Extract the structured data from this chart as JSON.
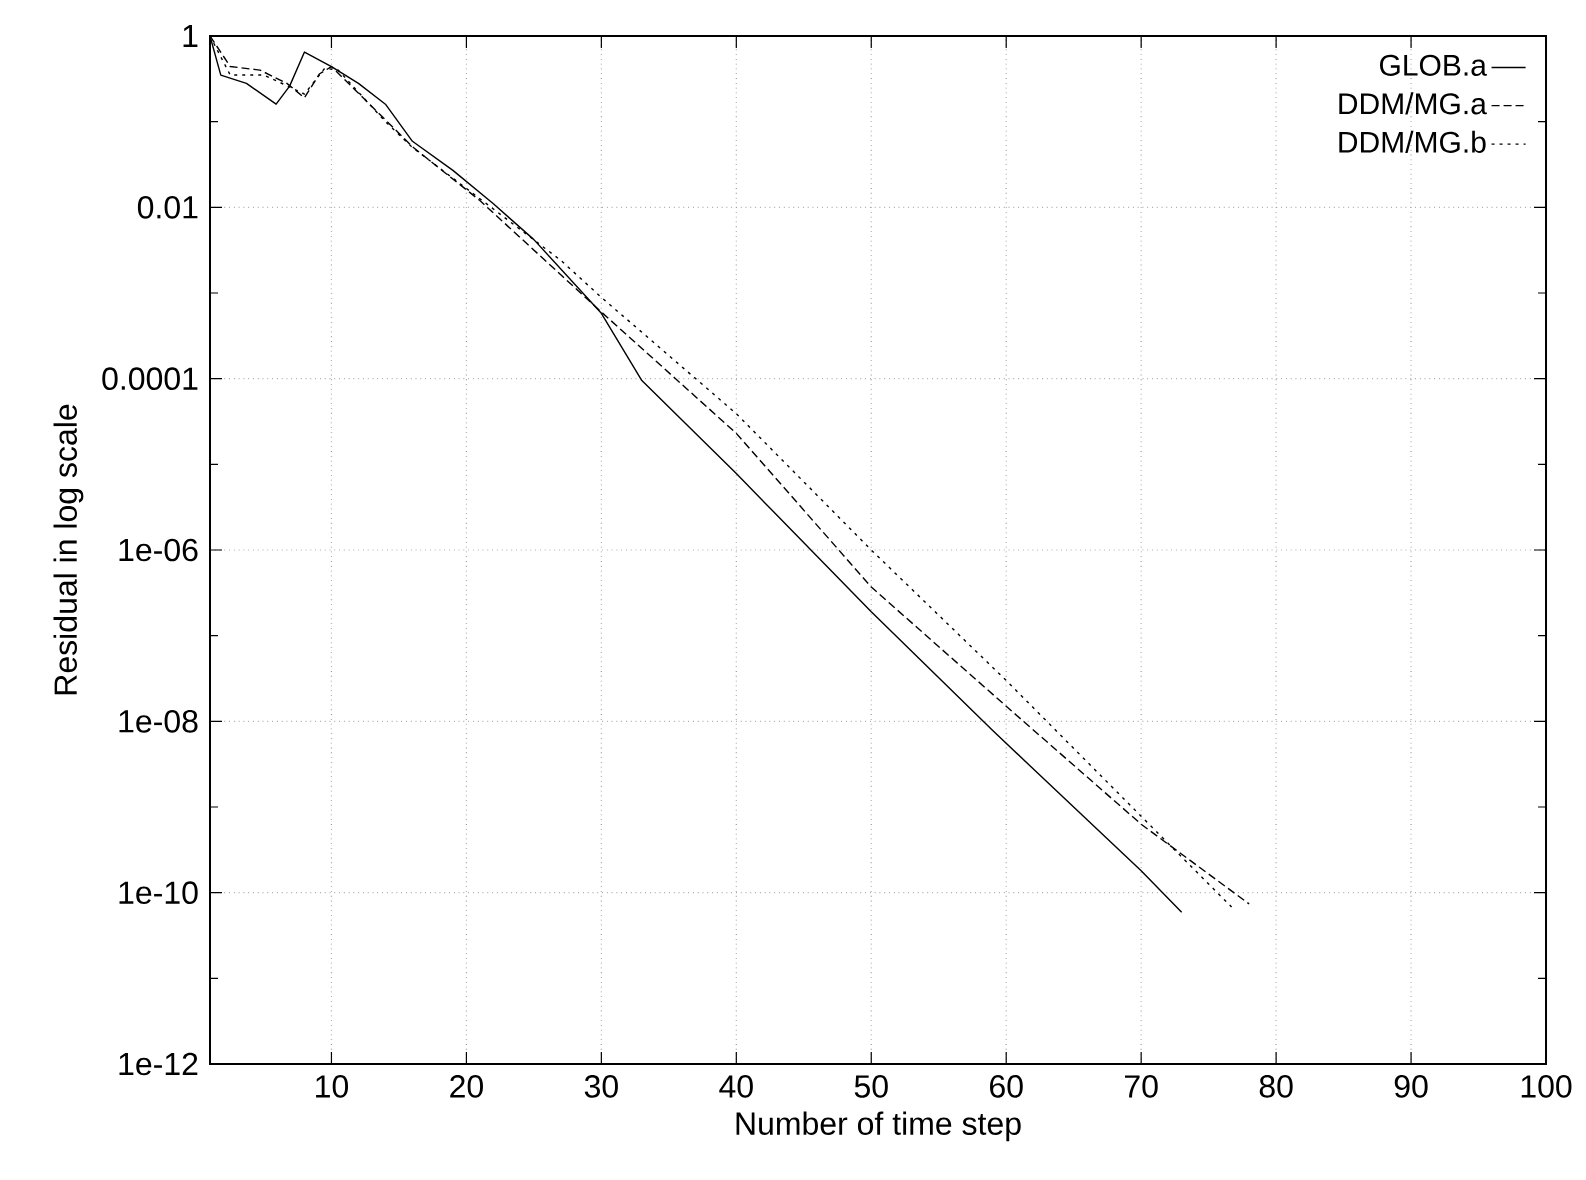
{
  "chart_data": {
    "type": "line",
    "xlabel": "Number of time step",
    "ylabel": "Residual in log scale",
    "xlim": [
      1,
      100
    ],
    "xticks": [
      10,
      20,
      30,
      40,
      50,
      60,
      70,
      80,
      90,
      100
    ],
    "ylim": [
      1e-12,
      1
    ],
    "yticks": [
      {
        "value": 1e-12,
        "label": "1e-12"
      },
      {
        "value": 1e-11,
        "label": null
      },
      {
        "value": 1e-10,
        "label": "1e-10"
      },
      {
        "value": 1e-09,
        "label": null
      },
      {
        "value": 1e-08,
        "label": "1e-08"
      },
      {
        "value": 1e-07,
        "label": null
      },
      {
        "value": 1e-06,
        "label": "1e-06"
      },
      {
        "value": 1e-05,
        "label": null
      },
      0.0001,
      {
        "value": 0.001,
        "label": null
      },
      0.01,
      {
        "value": 0.1,
        "label": null
      },
      1
    ],
    "log": "y",
    "grid": true,
    "legend": "top right",
    "marker": "none",
    "series": [
      {
        "name": "GLOB.a",
        "color": "#000000",
        "line_style": "solid",
        "x": [
          1,
          1.8,
          3.7,
          5.9,
          6.9,
          8,
          10,
          12,
          14,
          16,
          19,
          22,
          25,
          30,
          33,
          40,
          50,
          59,
          70,
          73
        ],
        "values": [
          1,
          0.35,
          0.28,
          0.16,
          0.26,
          0.65,
          0.44,
          0.28,
          0.16,
          0.059,
          0.027,
          0.011,
          0.0042,
          0.00058,
          9.5e-05,
          7.8e-06,
          1.9e-07,
          7.8e-09,
          1.8e-10,
          5.9e-11
        ]
      },
      {
        "name": "DDM/MG.a",
        "color": "#000000",
        "line_style": "dashed",
        "x": [
          1,
          2.5,
          4.7,
          6.7,
          8,
          9.1,
          10,
          14,
          16,
          21,
          30,
          40,
          50,
          60,
          70,
          78
        ],
        "values": [
          1,
          0.44,
          0.4,
          0.28,
          0.19,
          0.36,
          0.44,
          0.105,
          0.051,
          0.012,
          0.0006,
          2.3e-05,
          3.7e-07,
          1.5e-08,
          6.3e-10,
          7.4e-11
        ]
      },
      {
        "name": "DDM/MG.b",
        "color": "#000000",
        "line_style": "dotted",
        "x": [
          1,
          2.5,
          5,
          7,
          8,
          9.5,
          10.5,
          14,
          16,
          21,
          27,
          30,
          40,
          50,
          60,
          70,
          76.7
        ],
        "values": [
          1,
          0.35,
          0.35,
          0.25,
          0.21,
          0.42,
          0.4,
          0.1,
          0.05,
          0.0126,
          0.0024,
          0.00089,
          3.9e-05,
          1e-06,
          3e-08,
          7.8e-10,
          6.8e-11
        ]
      }
    ]
  }
}
